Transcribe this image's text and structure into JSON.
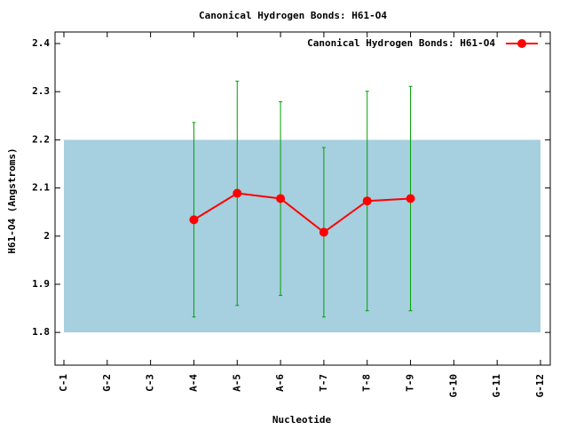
{
  "chart_data": {
    "type": "line",
    "title": "Canonical Hydrogen Bonds: H61-O4",
    "x_label": "Nucleotide",
    "y_label": "H61-O4 (Angstroms)",
    "categories": [
      "C-1",
      "G-2",
      "C-3",
      "A-4",
      "A-5",
      "A-6",
      "T-7",
      "T-8",
      "T-9",
      "G-10",
      "G-11",
      "G-12"
    ],
    "series": [
      {
        "name": "Canonical Hydrogen Bonds: H61-O4",
        "color": "#ff0000",
        "error_color": "#00a000",
        "values": [
          null,
          null,
          null,
          2.034,
          2.089,
          2.078,
          2.008,
          2.073,
          2.078,
          null,
          null,
          null
        ],
        "errors": [
          null,
          null,
          null,
          0.202,
          0.233,
          0.201,
          0.176,
          0.228,
          0.233,
          null,
          null,
          null
        ]
      }
    ],
    "band": [
      1.8,
      2.2
    ],
    "band_color": "#a6cfdf",
    "ylim": [
      1.732,
      2.424
    ],
    "yticks": [
      1.8,
      1.9,
      2,
      2.1,
      2.2,
      2.3,
      2.4
    ],
    "legend": "top-right"
  }
}
